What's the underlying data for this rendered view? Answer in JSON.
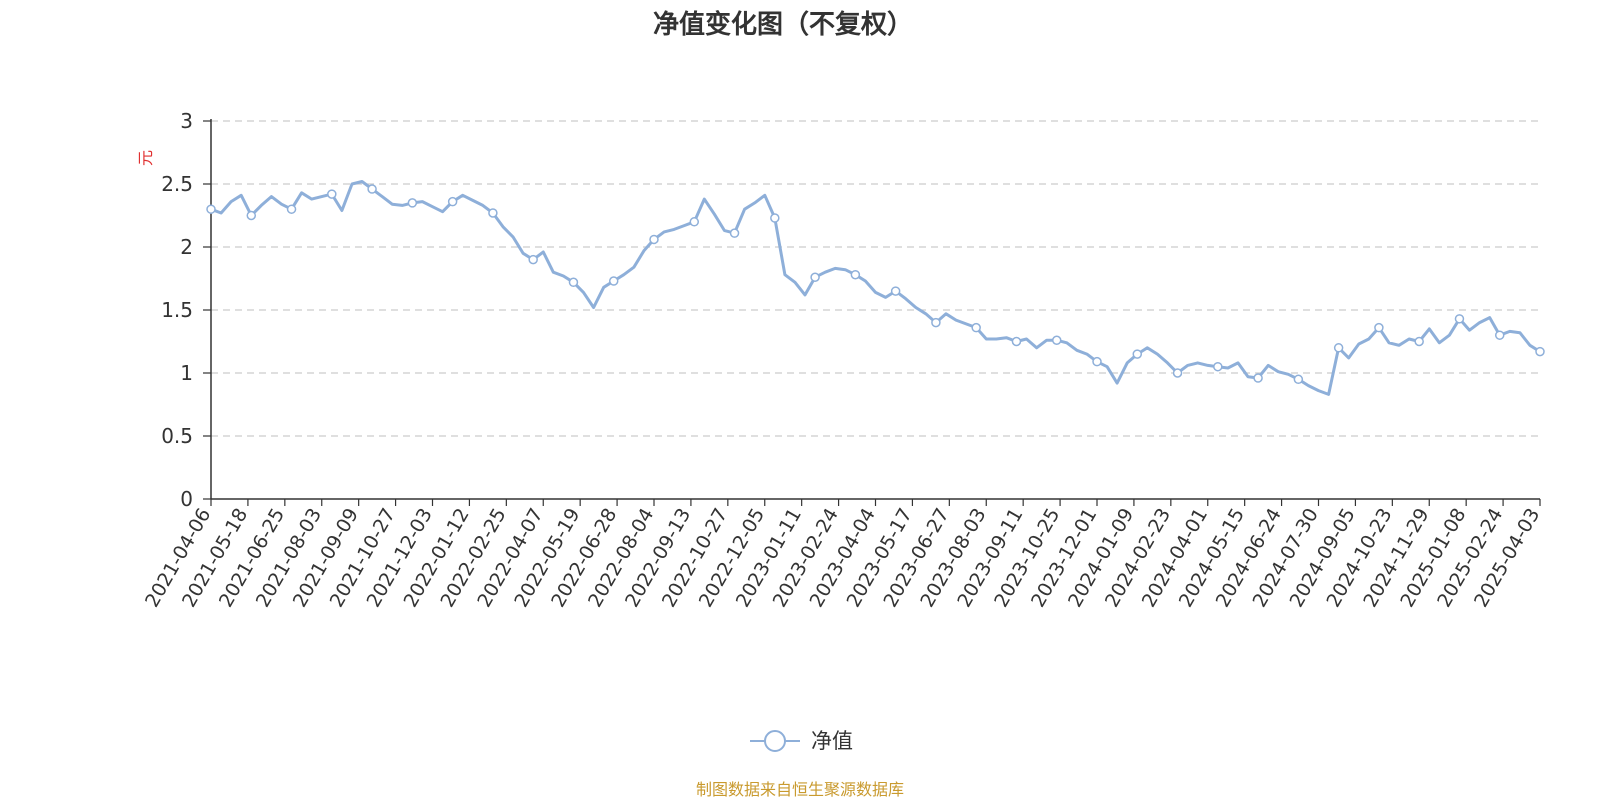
{
  "chart_data": {
    "type": "line",
    "title": "净值变化图（不复权）",
    "ylabel": "元",
    "ylim": [
      0,
      3
    ],
    "y_ticks": [
      "0",
      "0.5",
      "1",
      "1.5",
      "2",
      "2.5",
      "3"
    ],
    "grid": true,
    "legend_position": "bottom",
    "x_ticks": [
      "2021-04-06",
      "2021-05-18",
      "2021-06-25",
      "2021-08-03",
      "2021-09-09",
      "2021-10-27",
      "2021-12-03",
      "2022-01-12",
      "2022-02-25",
      "2022-04-07",
      "2022-05-19",
      "2022-06-28",
      "2022-08-04",
      "2022-09-13",
      "2022-10-27",
      "2022-12-05",
      "2023-01-11",
      "2023-02-24",
      "2023-04-04",
      "2023-05-17",
      "2023-06-27",
      "2023-08-03",
      "2023-09-11",
      "2023-10-25",
      "2023-12-01",
      "2024-01-09",
      "2024-02-23",
      "2024-04-01",
      "2024-05-15",
      "2024-06-24",
      "2024-07-30",
      "2024-09-05",
      "2024-10-23",
      "2024-11-29",
      "2025-01-08",
      "2025-02-24",
      "2025-04-03"
    ],
    "series": [
      {
        "name": "净值",
        "color": "#8eafd9",
        "values": [
          2.3,
          2.27,
          2.36,
          2.41,
          2.25,
          2.33,
          2.4,
          2.34,
          2.3,
          2.43,
          2.38,
          2.4,
          2.42,
          2.29,
          2.5,
          2.52,
          2.46,
          2.4,
          2.34,
          2.33,
          2.35,
          2.36,
          2.32,
          2.28,
          2.36,
          2.41,
          2.37,
          2.33,
          2.27,
          2.16,
          2.08,
          1.95,
          1.9,
          1.96,
          1.8,
          1.77,
          1.72,
          1.64,
          1.52,
          1.68,
          1.73,
          1.78,
          1.84,
          1.97,
          2.06,
          2.12,
          2.14,
          2.17,
          2.2,
          2.38,
          2.26,
          2.13,
          2.11,
          2.3,
          2.35,
          2.41,
          2.23,
          1.78,
          1.72,
          1.62,
          1.76,
          1.8,
          1.83,
          1.82,
          1.78,
          1.73,
          1.64,
          1.6,
          1.65,
          1.59,
          1.52,
          1.47,
          1.4,
          1.47,
          1.42,
          1.39,
          1.36,
          1.27,
          1.27,
          1.28,
          1.25,
          1.27,
          1.2,
          1.26,
          1.26,
          1.24,
          1.18,
          1.15,
          1.09,
          1.05,
          0.92,
          1.08,
          1.15,
          1.2,
          1.15,
          1.08,
          1.0,
          1.06,
          1.08,
          1.06,
          1.05,
          1.04,
          1.08,
          0.97,
          0.96,
          1.06,
          1.01,
          0.99,
          0.95,
          0.9,
          0.86,
          0.83,
          1.2,
          1.12,
          1.23,
          1.27,
          1.36,
          1.24,
          1.22,
          1.27,
          1.25,
          1.35,
          1.24,
          1.3,
          1.43,
          1.34,
          1.4,
          1.44,
          1.3,
          1.33,
          1.32,
          1.22,
          1.17
        ]
      }
    ]
  },
  "legend": {
    "label": "净值"
  },
  "source_note": "制图数据来自恒生聚源数据库",
  "colors": {
    "axis": "#333333",
    "grid": "#cccccc",
    "line": "#8eafd9",
    "unit_label": "#e03030",
    "source": "#c99a2e"
  }
}
